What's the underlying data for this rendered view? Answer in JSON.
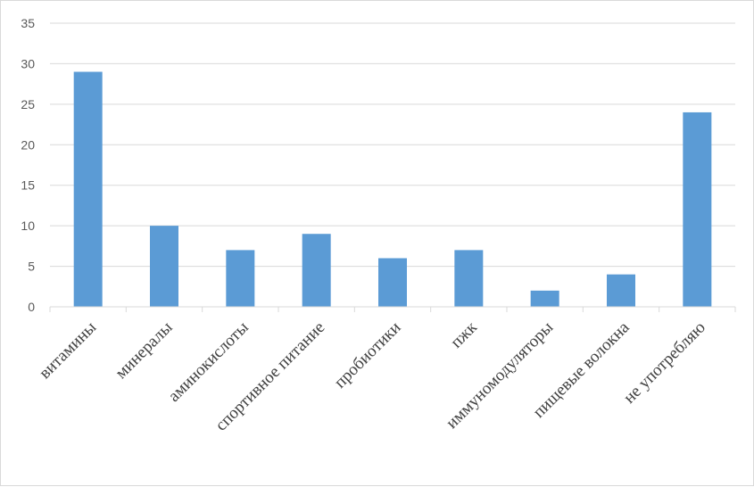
{
  "chart_data": {
    "type": "bar",
    "categories": [
      "витамины",
      "минералы",
      "аминокислоты",
      "спортивное питание",
      "пробиотики",
      "пжк",
      "иммуномодуляторы",
      "пищевые волокна",
      "не употребляю"
    ],
    "values": [
      29,
      10,
      7,
      9,
      6,
      7,
      2,
      4,
      24
    ],
    "ylim": [
      0,
      35
    ],
    "yticks": [
      "0",
      "5",
      "10",
      "15",
      "20",
      "25",
      "30",
      "35"
    ],
    "title": "",
    "xlabel": "",
    "ylabel": "",
    "grid": true,
    "legend": "none",
    "bar_color": "#5b9bd5",
    "grid_color": "#d9d9d9"
  }
}
